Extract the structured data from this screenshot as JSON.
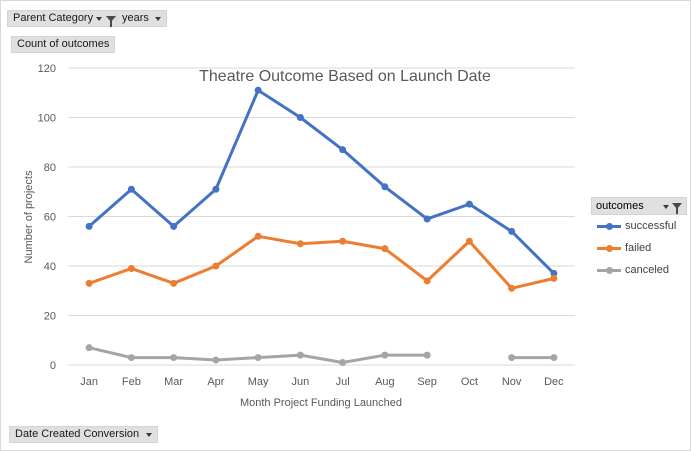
{
  "filters": {
    "parent_category": "Parent Category",
    "years": "years",
    "values_field": "Count of outcomes",
    "axis_field": "Date Created Conversion"
  },
  "legend": {
    "title": "outcomes"
  },
  "colors": {
    "successful": "#4472c4",
    "failed": "#ed7d31",
    "canceled": "#a5a5a5",
    "gridline": "#d9d9d9",
    "text": "#595959"
  },
  "chart_data": {
    "type": "line",
    "title": "Theatre Outcome Based on Launch Date",
    "xlabel": "Month Project Funding Launched",
    "ylabel": "Number of projects",
    "categories": [
      "Jan",
      "Feb",
      "Mar",
      "Apr",
      "May",
      "Jun",
      "Jul",
      "Aug",
      "Sep",
      "Oct",
      "Nov",
      "Dec"
    ],
    "ylim": [
      0,
      120
    ],
    "yticks": [
      "0",
      "20",
      "40",
      "60",
      "80",
      "100",
      "120"
    ],
    "grid": true,
    "legend_position": "right",
    "series": [
      {
        "name": "successful",
        "values": [
          56,
          71,
          56,
          71,
          111,
          100,
          87,
          72,
          59,
          65,
          54,
          37
        ]
      },
      {
        "name": "failed",
        "values": [
          33,
          39,
          33,
          40,
          52,
          49,
          50,
          47,
          34,
          50,
          31,
          35
        ]
      },
      {
        "name": "canceled",
        "values": [
          7,
          3,
          3,
          2,
          3,
          4,
          1,
          4,
          4,
          null,
          3,
          3
        ]
      }
    ]
  }
}
